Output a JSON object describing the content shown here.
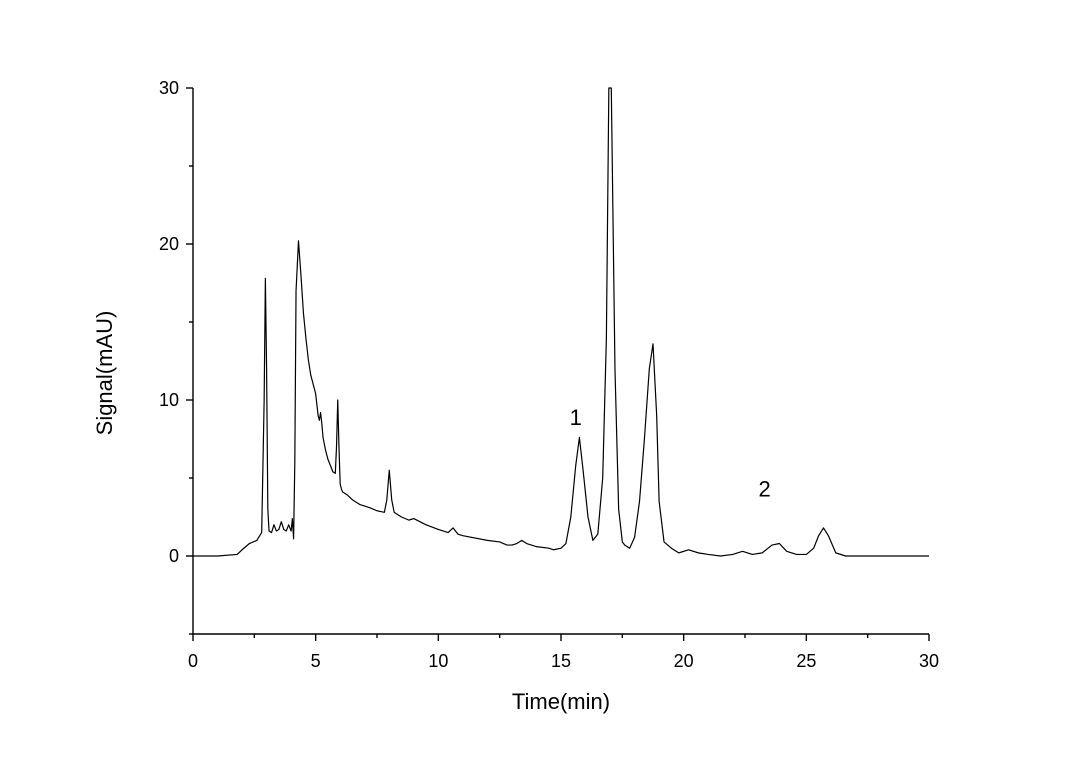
{
  "chart_data": {
    "type": "line",
    "title": "",
    "xlabel": "Time(min)",
    "ylabel": "Signal(mAU)",
    "xlim": [
      0,
      30
    ],
    "ylim": [
      -5,
      30
    ],
    "x_major_ticks": [
      0,
      5,
      10,
      15,
      20,
      25,
      30
    ],
    "x_tick_labels": [
      "0",
      "5",
      "10",
      "15",
      "20",
      "25",
      "30"
    ],
    "x_minor_ticks": [
      2.5,
      7.5,
      12.5,
      17.5,
      22.5,
      27.5
    ],
    "y_major_ticks": [
      0,
      10,
      20,
      30
    ],
    "y_tick_labels": [
      "0",
      "10",
      "20",
      "30"
    ],
    "y_minor_ticks": [
      -5,
      5,
      15,
      25
    ],
    "grid": false,
    "legend": "none",
    "line_color": "#000000",
    "annotations": [
      {
        "text": "1",
        "x": 15.6,
        "y": 8.4
      },
      {
        "text": "2",
        "x": 23.3,
        "y": 3.8
      }
    ],
    "series": [
      {
        "x": [
          0.0,
          1.0,
          1.8,
          2.0,
          2.3,
          2.6,
          2.8,
          2.9,
          2.95,
          3.0,
          3.05,
          3.1,
          3.2,
          3.3,
          3.4,
          3.5,
          3.6,
          3.7,
          3.8,
          3.9,
          4.0,
          4.05,
          4.1,
          4.15,
          4.2,
          4.3,
          4.4,
          4.5,
          4.6,
          4.7,
          4.8,
          4.9,
          5.0,
          5.1,
          5.15,
          5.2,
          5.25,
          5.3,
          5.4,
          5.5,
          5.6,
          5.7,
          5.8,
          5.85,
          5.9,
          5.95,
          6.0,
          6.05,
          6.1,
          6.3,
          6.5,
          6.8,
          7.0,
          7.2,
          7.5,
          7.8,
          7.9,
          8.0,
          8.1,
          8.2,
          8.5,
          8.8,
          9.0,
          9.5,
          10.0,
          10.4,
          10.6,
          10.8,
          11.0,
          12.0,
          12.5,
          12.8,
          13.0,
          13.2,
          13.4,
          13.6,
          14.0,
          14.5,
          14.7,
          15.0,
          15.2,
          15.4,
          15.6,
          15.75,
          15.9,
          16.1,
          16.3,
          16.5,
          16.7,
          16.85,
          16.95,
          17.05,
          17.2,
          17.35,
          17.5,
          17.6,
          17.8,
          18.0,
          18.2,
          18.4,
          18.6,
          18.75,
          18.9,
          19.0,
          19.2,
          19.5,
          19.8,
          20.2,
          20.6,
          21.0,
          21.5,
          22.0,
          22.4,
          22.8,
          23.2,
          23.6,
          23.9,
          24.2,
          24.6,
          25.0,
          25.3,
          25.5,
          25.7,
          25.9,
          26.2,
          26.6,
          27.0,
          27.5,
          28.0,
          28.5,
          29.0,
          29.5,
          30.0
        ],
        "y": [
          0.0,
          0.0,
          0.1,
          0.4,
          0.8,
          1.0,
          1.5,
          10.0,
          17.8,
          12.0,
          3.0,
          1.6,
          1.5,
          2.0,
          1.6,
          1.7,
          2.2,
          1.7,
          1.6,
          2.0,
          1.6,
          2.4,
          1.1,
          6.0,
          17.0,
          20.2,
          18.0,
          15.6,
          14.0,
          12.6,
          11.6,
          11.0,
          10.4,
          9.0,
          8.7,
          9.2,
          8.5,
          7.6,
          6.8,
          6.2,
          5.8,
          5.4,
          5.3,
          7.0,
          10.0,
          7.0,
          4.6,
          4.3,
          4.1,
          3.9,
          3.6,
          3.3,
          3.2,
          3.1,
          2.9,
          2.8,
          3.6,
          5.5,
          3.6,
          2.8,
          2.5,
          2.3,
          2.4,
          2.0,
          1.7,
          1.5,
          1.8,
          1.4,
          1.3,
          1.0,
          0.9,
          0.7,
          0.7,
          0.8,
          1.0,
          0.8,
          0.6,
          0.5,
          0.4,
          0.5,
          0.8,
          2.5,
          5.8,
          7.6,
          5.5,
          2.5,
          1.0,
          1.4,
          5.0,
          14.0,
          30.0,
          30.0,
          12.0,
          3.0,
          0.9,
          0.7,
          0.5,
          1.2,
          3.5,
          7.5,
          12.0,
          13.6,
          9.0,
          3.5,
          0.9,
          0.5,
          0.2,
          0.4,
          0.2,
          0.1,
          0.0,
          0.1,
          0.3,
          0.1,
          0.2,
          0.7,
          0.8,
          0.3,
          0.1,
          0.1,
          0.5,
          1.3,
          1.8,
          1.3,
          0.2,
          0.0,
          0.0,
          0.0,
          0.0,
          0.0,
          0.0,
          0.0,
          0.0
        ]
      }
    ]
  }
}
